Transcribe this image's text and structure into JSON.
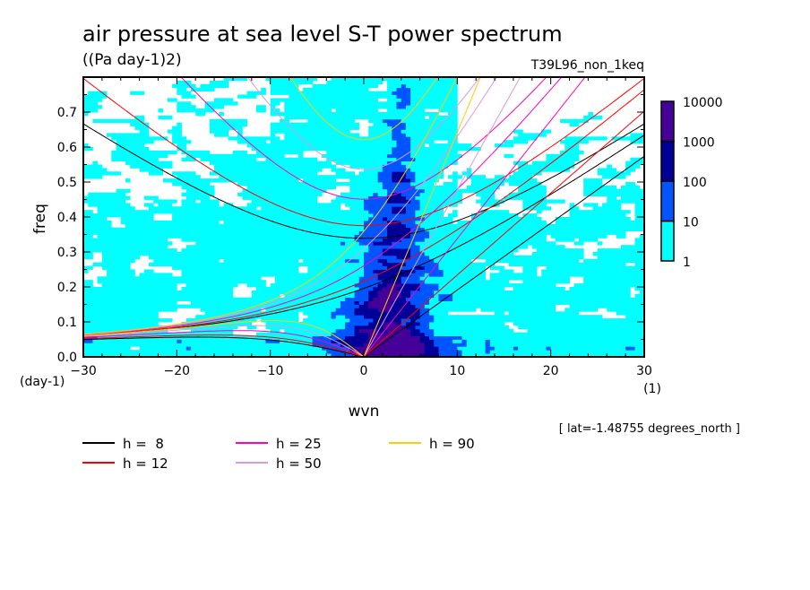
{
  "chart_data": {
    "type": "heatmap",
    "title": "air pressure at sea level S-T power spectrum",
    "units": "((Pa day-1)2)",
    "experiment": "T39L96_non_1keq",
    "xlabel": "wvn",
    "xunit": "(1)",
    "ylabel": "freq",
    "yunit": "(day-1)",
    "xlim": [
      -30,
      30
    ],
    "ylim": [
      0,
      0.8
    ],
    "xticks": [
      "-30",
      "-20",
      "-10",
      "0",
      "10",
      "20",
      "30"
    ],
    "yticks": [
      "0.0",
      "0.1",
      "0.2",
      "0.3",
      "0.4",
      "0.5",
      "0.6",
      "0.7"
    ],
    "colorbar": {
      "levels": [
        "1",
        "10",
        "100",
        "1000",
        "10000"
      ],
      "colors": [
        "#00ffff",
        "#0055ff",
        "#000099",
        "#440099"
      ],
      "scale": "log"
    },
    "note": "[ lat=-1.48755 degrees_north ]",
    "curves": [
      {
        "label": "h =  8",
        "h": 8,
        "color": "#000000"
      },
      {
        "label": "h = 12",
        "h": 12,
        "color": "#ff0000"
      },
      {
        "label": "h = 25",
        "h": 25,
        "color": "#ff00bb"
      },
      {
        "label": "h = 50",
        "h": 50,
        "color": "#dd99dd"
      },
      {
        "label": "h = 90",
        "h": 90,
        "color": "#ffcc00"
      }
    ]
  }
}
